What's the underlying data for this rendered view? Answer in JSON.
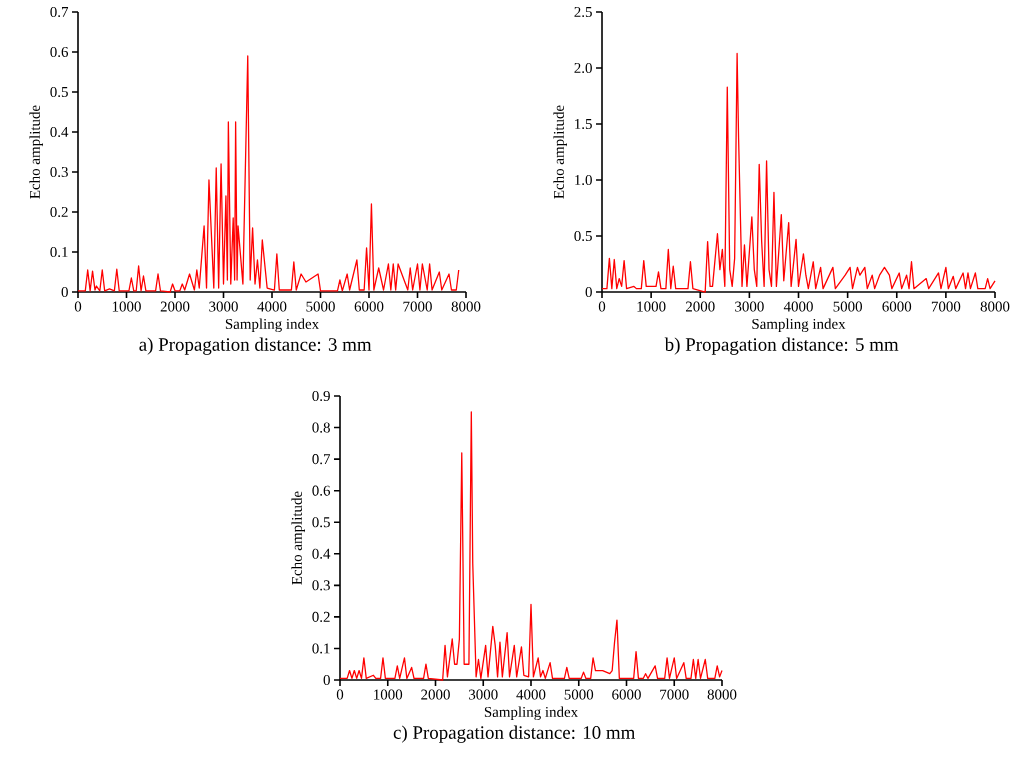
{
  "chart_data": [
    {
      "type": "line",
      "title": "a) Propagation distance: 3 mm",
      "xlabel": "Sampling index",
      "ylabel": "Echo amplitude",
      "xlim": [
        0,
        8000
      ],
      "ylim": [
        0,
        0.7
      ],
      "xticks": [
        0,
        1000,
        2000,
        3000,
        4000,
        5000,
        6000,
        7000,
        8000
      ],
      "yticks": [
        0,
        0.1,
        0.2,
        0.3,
        0.4,
        0.5,
        0.6,
        0.7
      ],
      "x": [
        0,
        150,
        200,
        250,
        300,
        350,
        380,
        450,
        500,
        550,
        650,
        750,
        800,
        850,
        1050,
        1100,
        1150,
        1200,
        1250,
        1300,
        1350,
        1400,
        1600,
        1650,
        1700,
        1900,
        1950,
        2000,
        2100,
        2150,
        2200,
        2300,
        2400,
        2450,
        2500,
        2600,
        2650,
        2700,
        2800,
        2850,
        2900,
        2950,
        3000,
        3050,
        3080,
        3100,
        3150,
        3200,
        3230,
        3250,
        3280,
        3300,
        3400,
        3500,
        3550,
        3600,
        3650,
        3700,
        3750,
        3800,
        3900,
        4050,
        4100,
        4150,
        4400,
        4450,
        4500,
        4600,
        4700,
        4950,
        5000,
        5350,
        5400,
        5450,
        5550,
        5600,
        5750,
        5800,
        5900,
        5950,
        6000,
        6050,
        6100,
        6200,
        6300,
        6400,
        6450,
        6500,
        6550,
        6600,
        6800,
        6850,
        6900,
        7000,
        7050,
        7100,
        7200,
        7250,
        7300,
        7450,
        7500,
        7650,
        7700,
        7800,
        7850
      ],
      "series": [
        {
          "color": "#ff0000",
          "values": [
            0.003,
            0.003,
            0.055,
            0.003,
            0.052,
            0.005,
            0.015,
            0.003,
            0.055,
            0.003,
            0.008,
            0.003,
            0.057,
            0.003,
            0.003,
            0.035,
            0.003,
            0.003,
            0.065,
            0.003,
            0.04,
            0.003,
            0.003,
            0.045,
            0.003,
            0,
            0.02,
            0.003,
            0.003,
            0.02,
            0.005,
            0.045,
            0.005,
            0.055,
            0.01,
            0.165,
            0.01,
            0.28,
            0.01,
            0.31,
            0.01,
            0.32,
            0.02,
            0.24,
            0.03,
            0.425,
            0.02,
            0.185,
            0.03,
            0.425,
            0.03,
            0.165,
            0.02,
            0.59,
            0.03,
            0.16,
            0.02,
            0.08,
            0.01,
            0.13,
            0.01,
            0.005,
            0.095,
            0.005,
            0.005,
            0.075,
            0.005,
            0.045,
            0.025,
            0.045,
            0.003,
            0.003,
            0.03,
            0.003,
            0.045,
            0.005,
            0.08,
            0.005,
            0.005,
            0.11,
            0.005,
            0.22,
            0.005,
            0.06,
            0.005,
            0.07,
            0.005,
            0.07,
            0.005,
            0.07,
            0.005,
            0.06,
            0.005,
            0.07,
            0.005,
            0.07,
            0.005,
            0.07,
            0.005,
            0.05,
            0.005,
            0.045,
            0.005,
            0.005,
            0.055
          ]
        }
      ]
    },
    {
      "type": "line",
      "title": "b) Propagation distance: 5 mm",
      "xlabel": "Sampling index",
      "ylabel": "Echo amplitude",
      "xlim": [
        0,
        8000
      ],
      "ylim": [
        0,
        2.5
      ],
      "xticks": [
        0,
        1000,
        2000,
        3000,
        4000,
        5000,
        6000,
        7000,
        8000
      ],
      "yticks": [
        0,
        0.5,
        {
          "value": 1,
          "label": "1.0"
        },
        1.5,
        {
          "value": 2,
          "label": "2.0"
        },
        2.5
      ],
      "x": [
        0,
        100,
        150,
        200,
        250,
        300,
        350,
        400,
        450,
        500,
        650,
        700,
        800,
        850,
        900,
        1100,
        1150,
        1200,
        1300,
        1350,
        1400,
        1450,
        1500,
        1750,
        1800,
        1850,
        2100,
        2150,
        2200,
        2250,
        2350,
        2400,
        2450,
        2500,
        2550,
        2600,
        2650,
        2700,
        2750,
        2780,
        2850,
        2900,
        2950,
        3050,
        3100,
        3150,
        3200,
        3250,
        3300,
        3350,
        3400,
        3450,
        3500,
        3550,
        3650,
        3700,
        3800,
        3850,
        3950,
        4000,
        4100,
        4150,
        4200,
        4300,
        4350,
        4450,
        4500,
        4700,
        4750,
        4950,
        5050,
        5100,
        5200,
        5250,
        5350,
        5400,
        5500,
        5550,
        5650,
        5750,
        5850,
        5900,
        6050,
        6100,
        6200,
        6250,
        6300,
        6350,
        6600,
        6650,
        6850,
        6900,
        7000,
        7050,
        7150,
        7200,
        7350,
        7400,
        7450,
        7500,
        7600,
        7650,
        7800,
        7850,
        7900,
        8000
      ],
      "series": [
        {
          "color": "#ff0000",
          "values": [
            0.03,
            0.03,
            0.3,
            0.03,
            0.29,
            0.03,
            0.12,
            0.05,
            0.28,
            0.03,
            0.05,
            0.03,
            0.03,
            0.28,
            0.05,
            0.05,
            0.18,
            0.03,
            0.03,
            0.38,
            0.03,
            0.23,
            0.03,
            0.03,
            0.27,
            0.03,
            0,
            0.45,
            0.05,
            0.05,
            0.52,
            0.2,
            0.38,
            0.05,
            1.83,
            0.2,
            0.05,
            0.3,
            2.13,
            1.38,
            0.05,
            0.42,
            0.05,
            0.67,
            0.2,
            0.05,
            1.14,
            0.45,
            0.05,
            1.17,
            0.2,
            0.05,
            0.89,
            0.05,
            0.69,
            0.1,
            0.62,
            0.05,
            0.47,
            0.05,
            0.34,
            0.15,
            0.03,
            0.27,
            0.03,
            0.22,
            0.03,
            0.22,
            0.03,
            0.15,
            0.22,
            0.03,
            0.22,
            0.15,
            0.22,
            0.03,
            0.15,
            0.03,
            0.15,
            0.22,
            0.15,
            0.03,
            0.17,
            0.03,
            0.15,
            0.03,
            0.27,
            0.03,
            0.12,
            0.03,
            0.17,
            0.03,
            0.22,
            0.03,
            0.14,
            0.03,
            0.17,
            0.03,
            0.17,
            0.03,
            0.17,
            0.03,
            0.03,
            0.12,
            0.03,
            0.1
          ]
        }
      ]
    },
    {
      "type": "line",
      "title": "c) Propagation distance: 10 mm",
      "xlabel": "Sampling index",
      "ylabel": "Echo amplitude",
      "xlim": [
        0,
        8000
      ],
      "ylim": [
        0,
        0.9
      ],
      "xticks": [
        0,
        1000,
        2000,
        3000,
        4000,
        5000,
        6000,
        7000,
        8000
      ],
      "yticks": [
        0,
        0.1,
        0.2,
        0.3,
        0.4,
        0.5,
        0.6,
        0.7,
        0.8,
        0.9
      ],
      "x": [
        0,
        150,
        200,
        250,
        300,
        350,
        400,
        450,
        500,
        550,
        700,
        750,
        850,
        900,
        950,
        1150,
        1200,
        1250,
        1350,
        1400,
        1500,
        1550,
        1750,
        1800,
        1850,
        2150,
        2200,
        2250,
        2350,
        2400,
        2450,
        2500,
        2550,
        2600,
        2700,
        2750,
        2780,
        2850,
        2900,
        2950,
        3050,
        3100,
        3200,
        3250,
        3300,
        3350,
        3400,
        3500,
        3550,
        3650,
        3700,
        3800,
        3850,
        3950,
        4000,
        4050,
        4150,
        4200,
        4250,
        4300,
        4400,
        4450,
        4700,
        4750,
        4800,
        5050,
        5100,
        5150,
        5250,
        5300,
        5350,
        5500,
        5650,
        5700,
        5750,
        5800,
        5850,
        6150,
        6200,
        6250,
        6350,
        6400,
        6450,
        6600,
        6650,
        6800,
        6850,
        6900,
        7000,
        7050,
        7200,
        7250,
        7350,
        7400,
        7450,
        7500,
        7550,
        7650,
        7700,
        7850,
        7900,
        7950,
        8000
      ],
      "series": [
        {
          "color": "#ff0000",
          "values": [
            0.005,
            0.005,
            0.03,
            0.005,
            0.03,
            0.005,
            0.03,
            0.005,
            0.07,
            0.005,
            0.015,
            0.005,
            0.005,
            0.07,
            0.005,
            0.005,
            0.045,
            0.005,
            0.07,
            0.005,
            0.04,
            0.005,
            0.005,
            0.05,
            0.005,
            0,
            0.11,
            0.01,
            0.13,
            0.05,
            0.05,
            0.13,
            0.72,
            0.05,
            0.05,
            0.85,
            0.37,
            0.01,
            0.065,
            0.005,
            0.11,
            0.01,
            0.17,
            0.11,
            0.01,
            0.12,
            0.01,
            0.15,
            0.01,
            0.11,
            0.01,
            0.105,
            0.015,
            0.01,
            0.24,
            0.01,
            0.07,
            0.01,
            0.03,
            0.005,
            0.055,
            0.005,
            0.005,
            0.04,
            0.005,
            0.005,
            0.025,
            0.005,
            0.005,
            0.07,
            0.03,
            0.03,
            0.02,
            0.03,
            0.12,
            0.19,
            0.005,
            0.005,
            0.09,
            0.005,
            0.005,
            0.02,
            0.005,
            0.045,
            0.005,
            0.005,
            0.07,
            0.005,
            0.07,
            0.005,
            0.055,
            0.005,
            0.005,
            0.065,
            0.005,
            0.065,
            0.005,
            0.065,
            0.005,
            0.005,
            0.045,
            0.01,
            0.03
          ]
        }
      ]
    }
  ]
}
